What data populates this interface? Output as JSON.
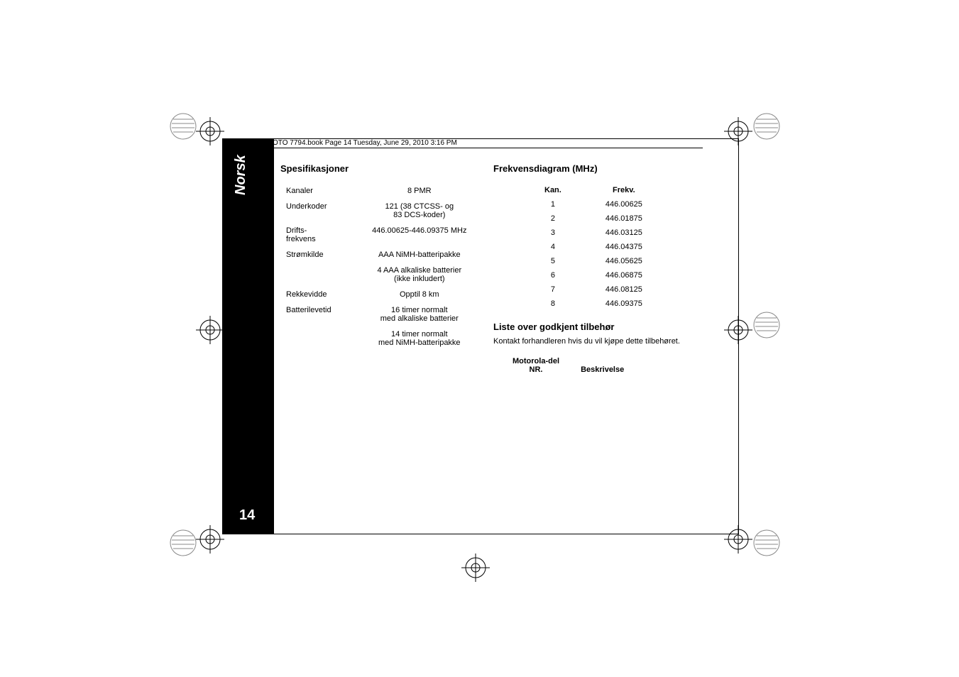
{
  "header": {
    "running_head": "OTO 7794.book  Page 14  Tuesday, June 29, 2010  3:16 PM"
  },
  "sidebar": {
    "language_label": "Norsk",
    "page_number": "14"
  },
  "left_column": {
    "title": "Spesifikasjoner",
    "specs": [
      {
        "label": "Kanaler",
        "value": "8 PMR"
      },
      {
        "label": "Underkoder",
        "value": "121 (38 CTCSS- og\n83 DCS-koder)"
      },
      {
        "label": "Drifts-\nfrekvens",
        "value": "446.00625-446.09375 MHz"
      },
      {
        "label": "Strømkilde",
        "value": "AAA NiMH-batteripakke"
      },
      {
        "label": "",
        "value": "4 AAA alkaliske batterier\n(ikke inkludert)"
      },
      {
        "label": "Rekkevidde",
        "value": "Opptil 8 km"
      },
      {
        "label": "Batterilevetid",
        "value": "16 timer normalt\nmed alkaliske batterier"
      },
      {
        "label": "",
        "value": "14 timer normalt\nmed NiMH-batteripakke"
      }
    ]
  },
  "right_column": {
    "freq_title": "Frekvensdiagram (MHz)",
    "freq_headers": {
      "channel": "Kan.",
      "frequency": "Frekv."
    },
    "freq_rows": [
      {
        "channel": "1",
        "frequency": "446.00625"
      },
      {
        "channel": "2",
        "frequency": "446.01875"
      },
      {
        "channel": "3",
        "frequency": "446.03125"
      },
      {
        "channel": "4",
        "frequency": "446.04375"
      },
      {
        "channel": "5",
        "frequency": "446.05625"
      },
      {
        "channel": "6",
        "frequency": "446.06875"
      },
      {
        "channel": "7",
        "frequency": "446.08125"
      },
      {
        "channel": "8",
        "frequency": "446.09375"
      }
    ],
    "accessory_title": "Liste over godkjent tilbehør",
    "accessory_text": "Kontakt forhandleren hvis du vil kjøpe dette tilbehøret.",
    "accessory_headers": {
      "part_no_line1": "Motorola-del",
      "part_no_line2": "NR.",
      "description": "Beskrivelse"
    }
  },
  "colors": {
    "page_bg": "#ffffff",
    "sidebar_bg": "#000000",
    "sidebar_text": "#ffffff",
    "body_text": "#000000"
  }
}
